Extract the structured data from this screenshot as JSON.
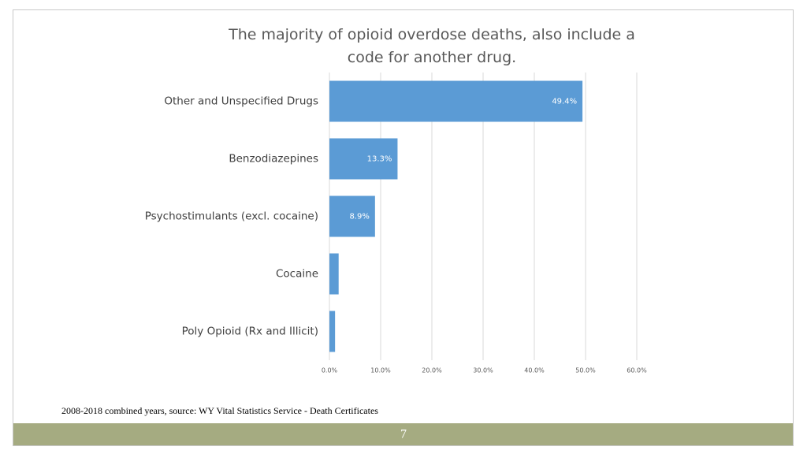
{
  "chart_data": {
    "type": "bar",
    "orientation": "horizontal",
    "title": "The majority of opioid overdose deaths, also include a code for another drug.",
    "categories": [
      "Other and Unspecified Drugs",
      "Benzodiazepines",
      "Psychostimulants (excl. cocaine)",
      "Cocaine",
      "Poly Opioid (Rx and Illicit)"
    ],
    "values": [
      49.4,
      13.3,
      8.9,
      1.8,
      1.1
    ],
    "value_labels": [
      "49.4%",
      "13.3%",
      "8.9%",
      null,
      null
    ],
    "color": "#5b9bd5",
    "xlim": [
      0,
      60
    ],
    "xticks": [
      {
        "value": 0,
        "label": "0.0%"
      },
      {
        "value": 10,
        "label": "10.0%"
      },
      {
        "value": 20,
        "label": "20.0%"
      },
      {
        "value": 30,
        "label": "30.0%"
      },
      {
        "value": 40,
        "label": "40.0%"
      },
      {
        "value": 50,
        "label": "50.0%"
      },
      {
        "value": 60,
        "label": "60.0%"
      }
    ],
    "grid": true
  },
  "footnote": "2008-2018 combined years, source: WY Vital Statistics Service - Death Certificates",
  "page_number": "7"
}
